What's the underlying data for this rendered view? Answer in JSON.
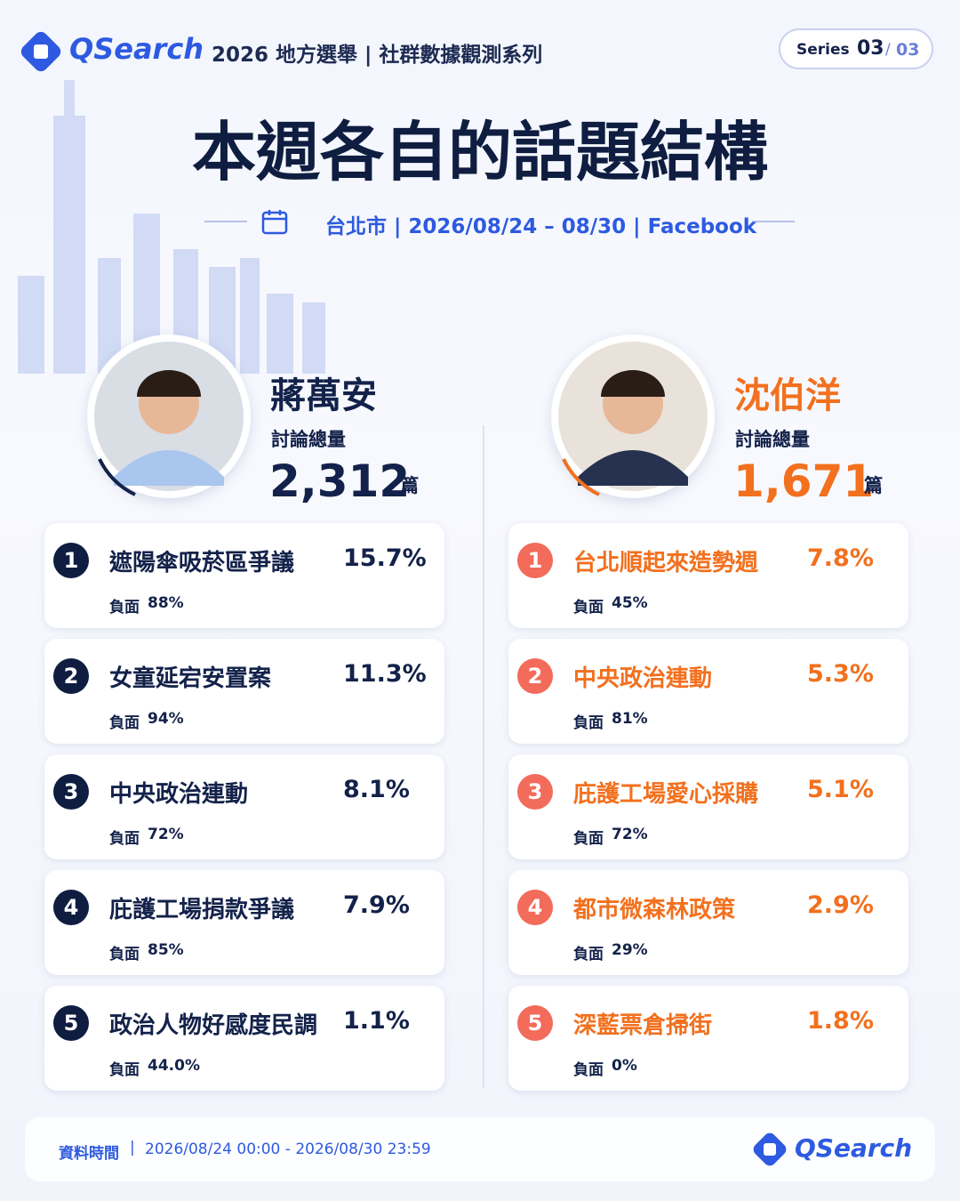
{
  "header": {
    "brand": "QSearch",
    "subtitle": "2026 地方選舉 | 社群數據觀測系列",
    "series": {
      "label": "Series",
      "current": "03",
      "separator": "/",
      "total": "03"
    }
  },
  "title": "本週各自的話題結構",
  "meta": "台北市 | 2026/08/24 – 08/30 | Facebook",
  "candidates": [
    {
      "name": "蔣萬安",
      "volume_label": "討論總量",
      "volume": "2,312",
      "unit": "篇",
      "topics": [
        {
          "rank": "1",
          "title": "遮陽傘吸菸區爭議",
          "share": "15.7%",
          "negative_label": "負面",
          "negative": "88%"
        },
        {
          "rank": "2",
          "title": "女童延宕安置案",
          "share": "11.3%",
          "negative_label": "負面",
          "negative": "94%"
        },
        {
          "rank": "3",
          "title": "中央政治連動",
          "share": "8.1%",
          "negative_label": "負面",
          "negative": "72%"
        },
        {
          "rank": "4",
          "title": "庇護工場捐款爭議",
          "share": "7.9%",
          "negative_label": "負面",
          "negative": "85%"
        },
        {
          "rank": "5",
          "title": "政治人物好感度民調",
          "share": "1.1%",
          "negative_label": "負面",
          "negative": "44.0%"
        }
      ]
    },
    {
      "name": "沈伯洋",
      "volume_label": "討論總量",
      "volume": "1,671",
      "unit": "篇",
      "topics": [
        {
          "rank": "1",
          "title": "台北順起來造勢週",
          "share": "7.8%",
          "negative_label": "負面",
          "negative": "45%"
        },
        {
          "rank": "2",
          "title": "中央政治連動",
          "share": "5.3%",
          "negative_label": "負面",
          "negative": "81%"
        },
        {
          "rank": "3",
          "title": "庇護工場愛心採購",
          "share": "5.1%",
          "negative_label": "負面",
          "negative": "72%"
        },
        {
          "rank": "4",
          "title": "都市微森林政策",
          "share": "2.9%",
          "negative_label": "負面",
          "negative": "29%"
        },
        {
          "rank": "5",
          "title": "深藍票倉掃街",
          "share": "1.8%",
          "negative_label": "負面",
          "negative": "0%"
        }
      ]
    }
  ],
  "footer": {
    "label": "資料時間",
    "range": "2026/08/24 00:00 - 2026/08/30 23:59",
    "brand": "QSearch"
  }
}
